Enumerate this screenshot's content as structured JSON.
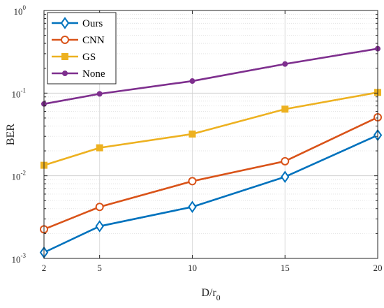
{
  "chart_data": {
    "type": "line",
    "x": [
      2,
      5,
      10,
      15,
      20
    ],
    "x_tick_labels": [
      "2",
      "5",
      "10",
      "15",
      "20"
    ],
    "xlim": [
      2,
      20
    ],
    "xlabel": "D/r",
    "xlabel_subscript": "0",
    "ylabel": "BER",
    "yscale": "log",
    "ylim": [
      0.001,
      1
    ],
    "y_tick_labels": [
      {
        "base": "10",
        "exp": "-3"
      },
      {
        "base": "10",
        "exp": "-2"
      },
      {
        "base": "10",
        "exp": "-1"
      },
      {
        "base": "10",
        "exp": "0"
      }
    ],
    "grid": true,
    "minor_grid": true,
    "legend_position": "top-left",
    "series": [
      {
        "name": "Ours",
        "color": "#0072BD",
        "marker": "diamond",
        "values": [
          0.00118,
          0.00245,
          0.0042,
          0.0097,
          0.031
        ]
      },
      {
        "name": "CNN",
        "color": "#D95319",
        "marker": "circle",
        "values": [
          0.00225,
          0.0042,
          0.0086,
          0.015,
          0.051
        ]
      },
      {
        "name": "GS",
        "color": "#EDB120",
        "marker": "square",
        "values": [
          0.0134,
          0.0218,
          0.032,
          0.064,
          0.102
        ]
      },
      {
        "name": "None",
        "color": "#7E2F8E",
        "marker": "dot",
        "values": [
          0.074,
          0.098,
          0.14,
          0.225,
          0.345
        ]
      }
    ]
  }
}
